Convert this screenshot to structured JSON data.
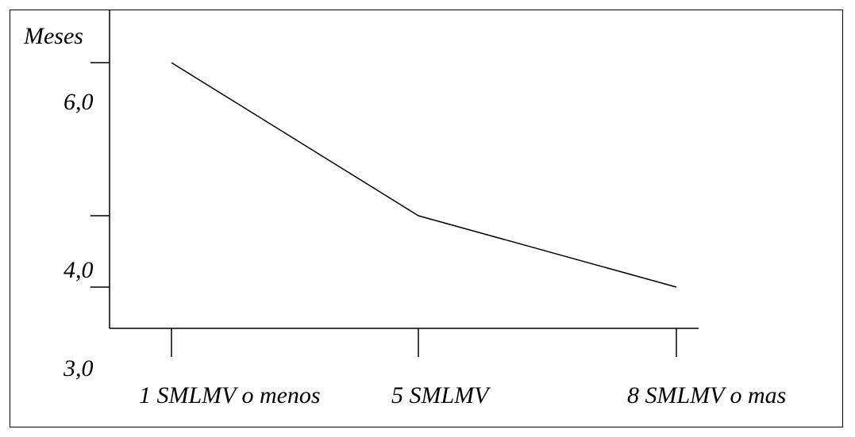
{
  "chart_data": {
    "type": "line",
    "ylabel": "Meses",
    "xlabel": "",
    "categories": [
      "1 SMLMV o menos",
      "5 SMLMV",
      "8 SMLMV o mas"
    ],
    "series": [
      {
        "values": [
          6.3,
          4.6,
          4.05
        ]
      }
    ],
    "yticks": [
      "6,0",
      "4,0",
      "3,0"
    ],
    "grid": false,
    "legend": "none",
    "colors": {
      "line": "#000000",
      "axis": "#000000",
      "background": "#ffffff"
    }
  }
}
